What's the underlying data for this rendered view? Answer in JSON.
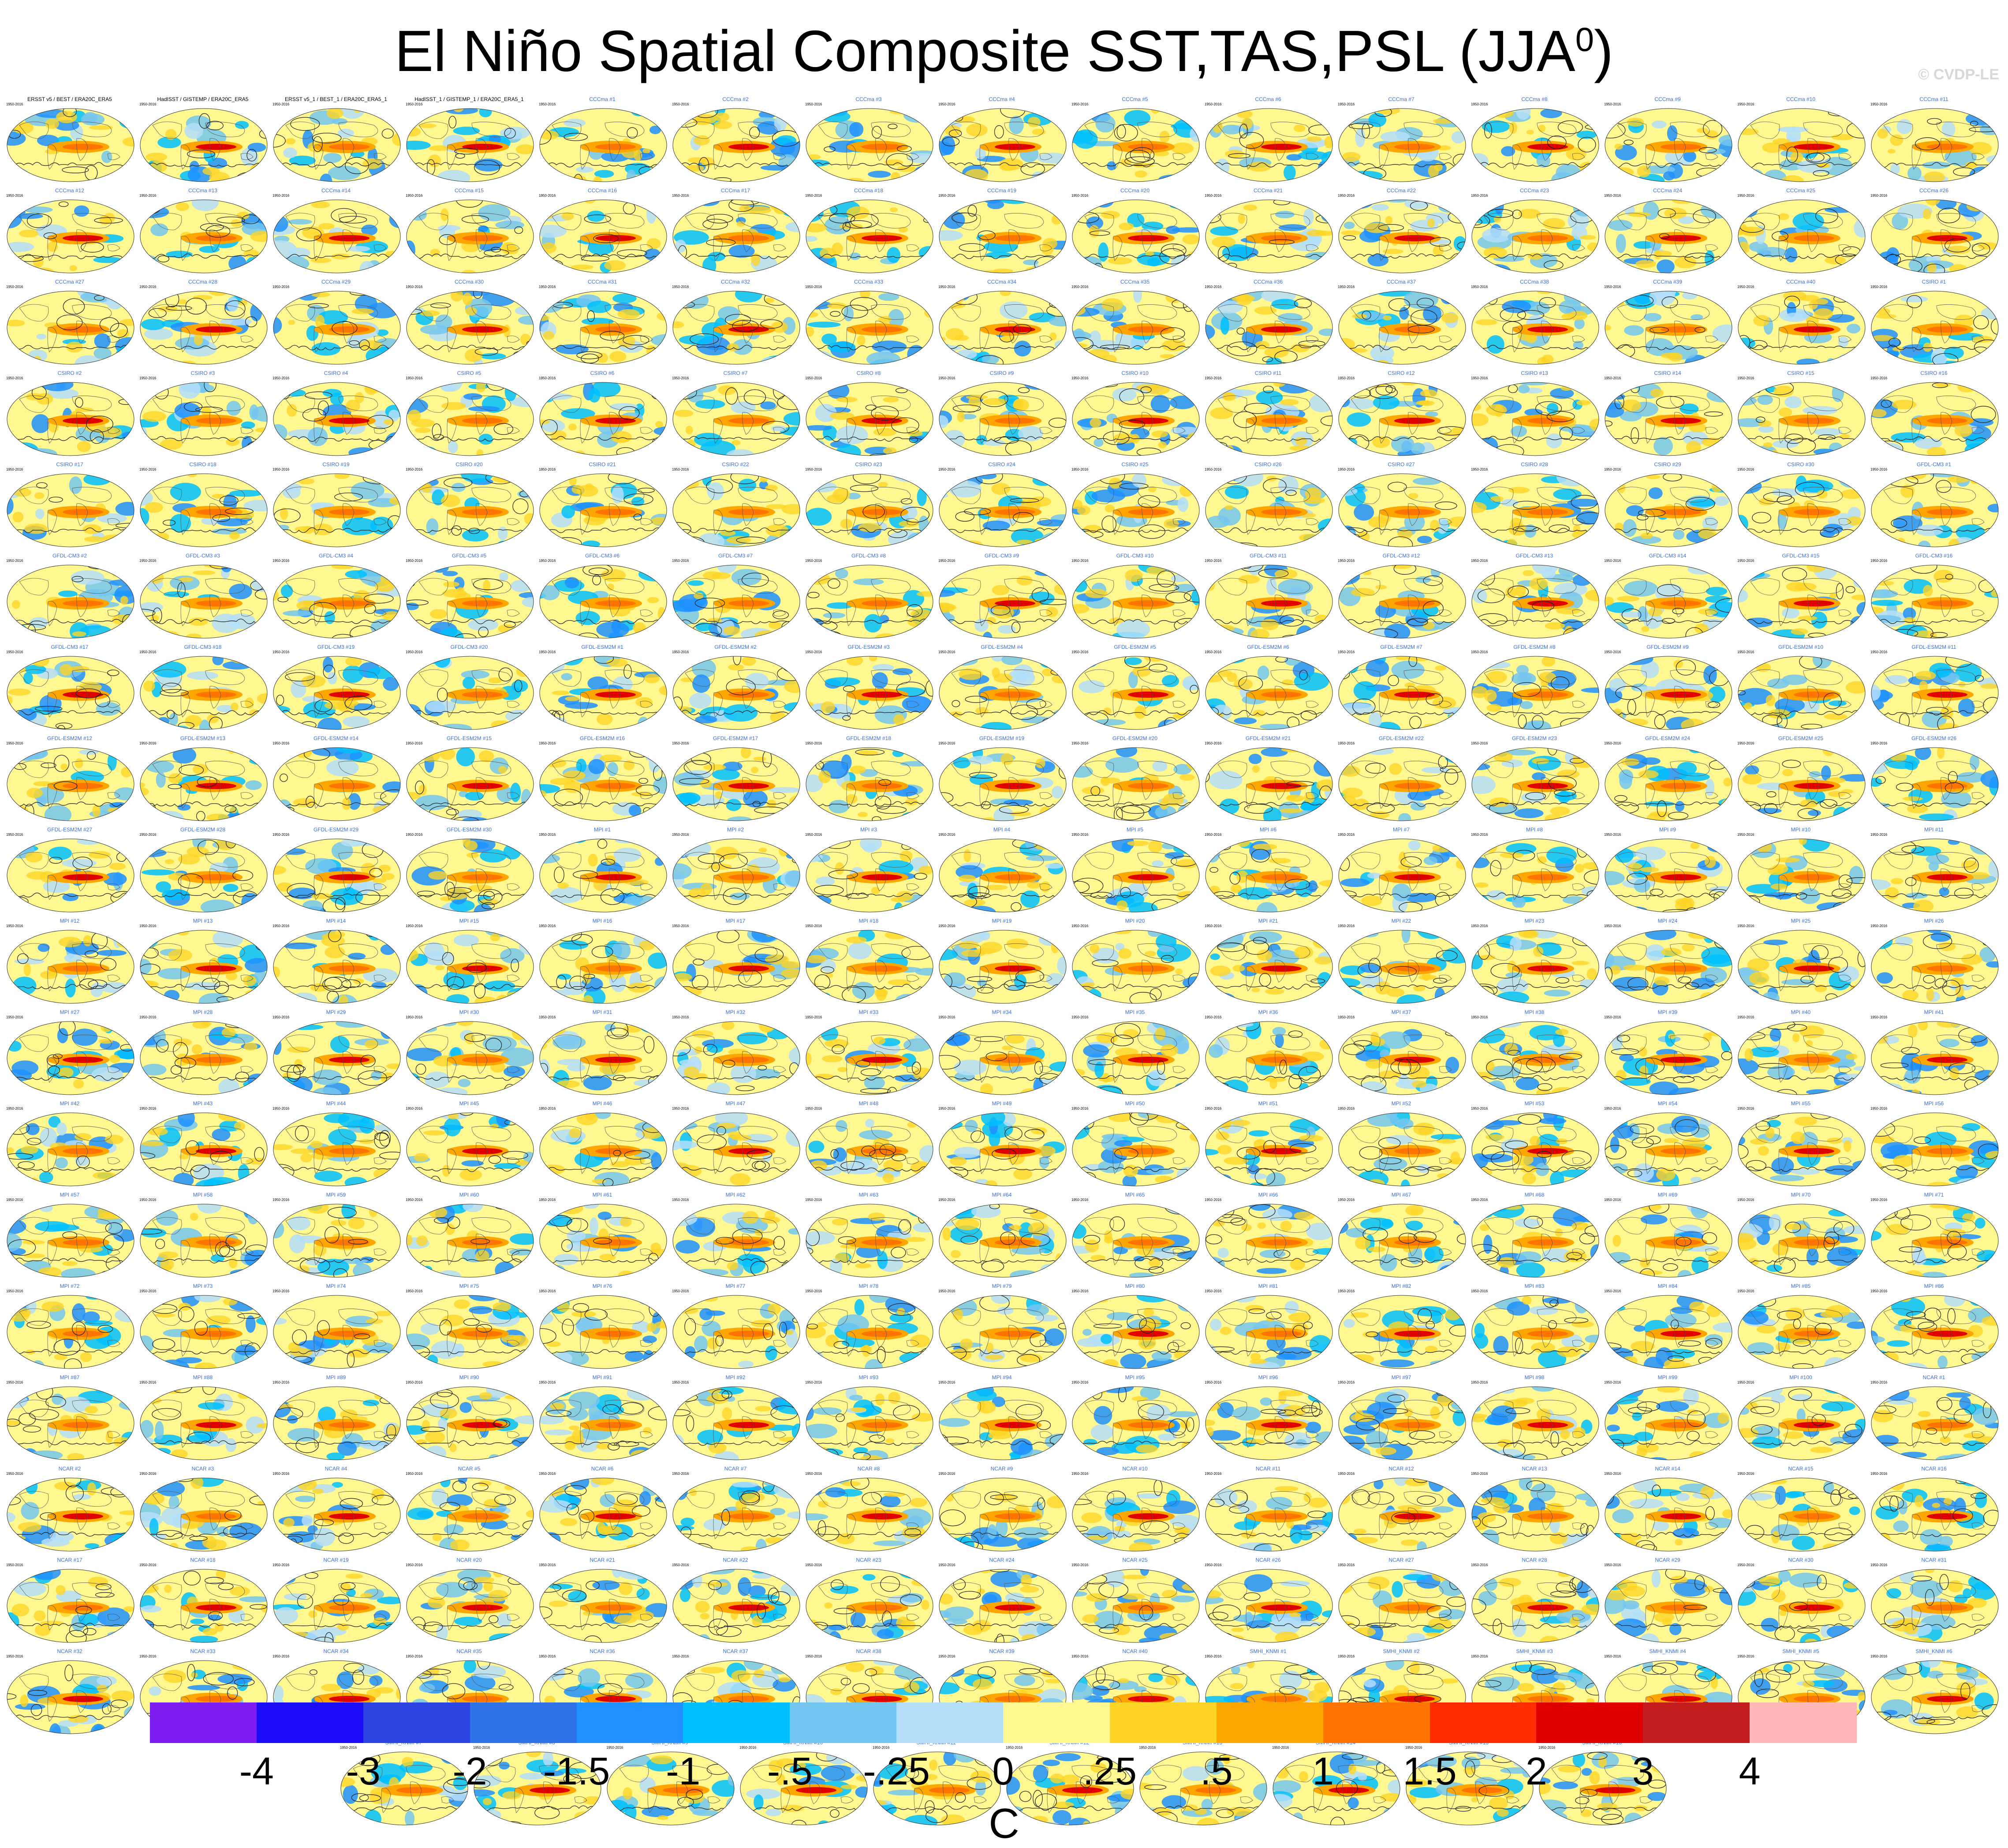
{
  "title": {
    "main": "El Niño Spatial Composite SST,TAS,PSL (JJA",
    "sup": "0",
    "close": ")"
  },
  "watermark": "© CVDP-LE",
  "chart_data": {
    "type": "heatmap",
    "description_title": "El Niño Spatial Composite SST,TAS,PSL (JJA0)",
    "colorbar": {
      "units": "C",
      "levels": [
        "-4",
        "-3",
        "-2",
        "-1.5",
        "-1",
        "-.5",
        "-.25",
        "0",
        ".25",
        ".5",
        "1",
        "1.5",
        "2",
        "3",
        "4"
      ],
      "colors": [
        "#7e1df0",
        "#1a0cf5",
        "#2d44e0",
        "#2f72e8",
        "#1e90ff",
        "#00bfff",
        "#74c6f0",
        "#b4defa",
        "#fff78f",
        "#fdd426",
        "#fda500",
        "#ff7300",
        "#ff2c00",
        "#e00000",
        "#c41d1d",
        "#ffb7b7"
      ]
    },
    "panel_groups": [
      {
        "name": "obs",
        "labels": [
          "ERSST v5 / BEST / ERA20C_ERA5",
          "HadISST / GISTEMP / ERA20C_ERA5",
          "ERSST v5_1 / BEST_1 / ERA20C_ERA5_1",
          "HadISST_1 / GISTEMP_1 / ERA20C_ERA5_1"
        ]
      },
      {
        "name": "CCCma",
        "prefix": "CCCma #",
        "count": 40
      },
      {
        "name": "CSIRO",
        "prefix": "CSIRO #",
        "count": 30
      },
      {
        "name": "GFDL-CM3",
        "prefix": "GFDL-CM3 #",
        "count": 20
      },
      {
        "name": "GFDL-ESM2M",
        "prefix": "GFDL-ESM2M #",
        "count": 30
      },
      {
        "name": "MPI",
        "prefix": "MPI #",
        "count": 100
      },
      {
        "name": "NCAR",
        "prefix": "NCAR #",
        "count": 40
      },
      {
        "name": "SMHI_KNMI",
        "prefix": "SMHI_KNMI #",
        "count": 16
      }
    ],
    "years": "1950-2016"
  }
}
